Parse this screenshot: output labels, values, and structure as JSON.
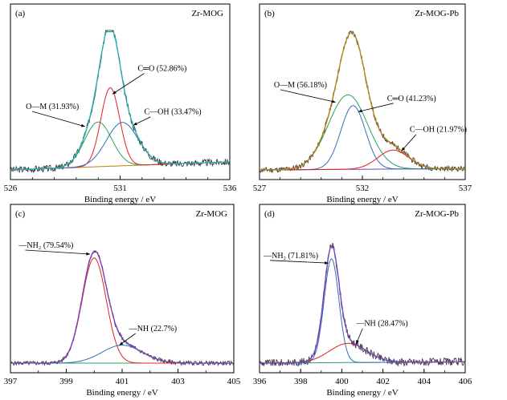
{
  "chart_data": [
    {
      "panel": "(a)",
      "title": "Zr-MOG",
      "type": "line",
      "xlabel": "Binding energy / eV",
      "xlim": [
        526,
        536
      ],
      "x_ticks": [
        526,
        531,
        536
      ],
      "x_minor_step": 1,
      "ylim": [
        0,
        1
      ],
      "series": [
        {
          "name": "O—M (31.93%)",
          "kind": "gauss",
          "color": "#2ca05a",
          "center": 530.0,
          "height": 0.33,
          "sigma": 0.62
        },
        {
          "name": "C═O (52.86%)",
          "kind": "gauss",
          "color": "#e02020",
          "center": 530.55,
          "height": 0.58,
          "sigma": 0.43
        },
        {
          "name": "C—OH (33.47%)",
          "kind": "gauss",
          "color": "#2f6fb8",
          "center": 531.1,
          "height": 0.32,
          "sigma": 0.72
        },
        {
          "kind": "baseline",
          "color": "#b8860b",
          "y0": 0.0,
          "y1": 0.06
        },
        {
          "kind": "envelope",
          "color": "#20b0b0"
        },
        {
          "kind": "raw",
          "color": "#3a3a3a",
          "seed": 3,
          "noise": 0.025
        }
      ],
      "annotations": [
        {
          "text": "C═O (52.86%)",
          "label_x": 531.8,
          "label_y": 0.73,
          "arrow_x": 530.65,
          "arrow_y": 0.56
        },
        {
          "text": "O—M (31.93%)",
          "label_x": 526.7,
          "label_y": 0.45,
          "arrow_x": 529.4,
          "arrow_y": 0.32
        },
        {
          "text": "C—OH (33.47%)",
          "label_x": 532.1,
          "label_y": 0.41,
          "arrow_x": 531.6,
          "arrow_y": 0.33
        }
      ]
    },
    {
      "panel": "(b)",
      "title": "Zr-MOG-Pb",
      "type": "line",
      "xlabel": "Binding energy / eV",
      "xlim": [
        527,
        537
      ],
      "x_ticks": [
        527,
        532,
        537
      ],
      "x_minor_step": 1,
      "ylim": [
        0,
        1
      ],
      "series": [
        {
          "name": "O—M (56.18%)",
          "kind": "gauss",
          "color": "#2ca05a",
          "center": 531.3,
          "height": 0.55,
          "sigma": 0.95
        },
        {
          "name": "C═O (41.23%)",
          "kind": "gauss",
          "color": "#2f6fb8",
          "center": 531.55,
          "height": 0.47,
          "sigma": 0.6
        },
        {
          "name": "C—OH (21.97%)",
          "kind": "gauss",
          "color": "#e02020",
          "center": 533.5,
          "height": 0.14,
          "sigma": 0.75
        },
        {
          "kind": "baseline",
          "color": "#7a3fbf",
          "y0": 0.0,
          "y1": 0.01
        },
        {
          "kind": "envelope",
          "color": "#b8860b"
        },
        {
          "kind": "raw",
          "color": "#3a3a3a",
          "seed": 11,
          "noise": 0.02
        }
      ],
      "annotations": [
        {
          "text": "O—M (56.18%)",
          "label_x": 527.7,
          "label_y": 0.61,
          "arrow_x": 530.7,
          "arrow_y": 0.5
        },
        {
          "text": "C═O (41.23%)",
          "label_x": 533.2,
          "label_y": 0.51,
          "arrow_x": 531.8,
          "arrow_y": 0.43
        },
        {
          "text": "C—OH (21.97%)",
          "label_x": 534.3,
          "label_y": 0.28,
          "arrow_x": 533.9,
          "arrow_y": 0.14
        }
      ]
    },
    {
      "panel": "(c)",
      "title": "Zr-MOG",
      "type": "line",
      "xlabel": "Binding energy / eV",
      "xlim": [
        397,
        405
      ],
      "x_ticks": [
        397,
        399,
        401,
        403,
        405
      ],
      "x_minor_step": 1,
      "ylim": [
        0,
        1
      ],
      "series": [
        {
          "name": "—NH2 (79.54%)",
          "kind": "gauss",
          "color": "#e02020",
          "center": 400.0,
          "height": 0.82,
          "sigma": 0.43
        },
        {
          "name": "—NH (22.7%)",
          "kind": "gauss",
          "color": "#2f6fb8",
          "center": 401.0,
          "height": 0.14,
          "sigma": 0.72
        },
        {
          "kind": "baseline",
          "color": "#2ca05a",
          "y0": 0.0,
          "y1": 0.0
        },
        {
          "kind": "envelope",
          "color": "#7a3fbf"
        },
        {
          "kind": "raw",
          "color": "#3a3a3a",
          "seed": 5,
          "noise": 0.016
        }
      ],
      "annotations": [
        {
          "text": "—NH₂ (79.54%)",
          "label_x": 397.3,
          "label_y": 0.9,
          "arrow_x": 399.85,
          "arrow_y": 0.85
        },
        {
          "text": "—NH (22.7%)",
          "label_x": 401.25,
          "label_y": 0.25,
          "arrow_x": 400.9,
          "arrow_y": 0.14
        }
      ]
    },
    {
      "panel": "(d)",
      "title": "Zr-MOG-Pb",
      "type": "line",
      "xlabel": "Binding energy / eV",
      "xlim": [
        396,
        406
      ],
      "x_ticks": [
        396,
        398,
        400,
        402,
        404,
        406
      ],
      "x_minor_step": 1,
      "ylim": [
        0,
        1
      ],
      "series": [
        {
          "name": "—NH2 (71.81%)",
          "kind": "gauss",
          "color": "#2f6fb8",
          "center": 399.5,
          "height": 0.81,
          "sigma": 0.36
        },
        {
          "name": "—NH (28.47%)",
          "kind": "gauss",
          "color": "#e02020",
          "center": 400.3,
          "height": 0.15,
          "sigma": 0.9
        },
        {
          "kind": "baseline",
          "color": "#2ca05a",
          "y0": 0.0,
          "y1": 0.01
        },
        {
          "kind": "envelope",
          "color": "#7a3fbf"
        },
        {
          "kind": "raw",
          "color": "#3a3a3a",
          "seed": 9,
          "noise": 0.03
        }
      ],
      "annotations": [
        {
          "text": "—NH₂ (71.81%)",
          "label_x": 396.2,
          "label_y": 0.82,
          "arrow_x": 399.35,
          "arrow_y": 0.78
        },
        {
          "text": "—NH (28.47%)",
          "label_x": 400.7,
          "label_y": 0.29,
          "arrow_x": 400.7,
          "arrow_y": 0.15
        }
      ]
    }
  ]
}
